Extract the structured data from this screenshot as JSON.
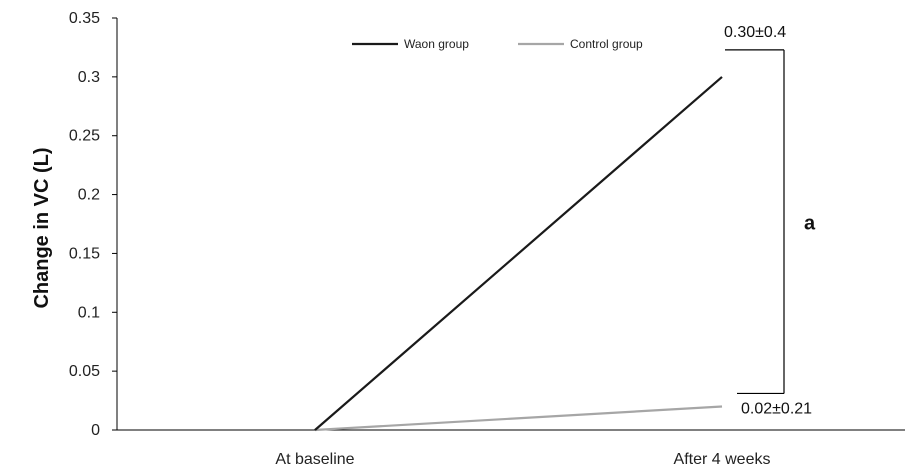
{
  "chart_data": {
    "type": "line",
    "title": "",
    "xlabel": "",
    "ylabel": "Change in VC (L)",
    "categories": [
      "At baseline",
      "After 4 weeks"
    ],
    "ylim": [
      0,
      0.35
    ],
    "yticks": [
      0,
      0.05,
      0.1,
      0.15,
      0.2,
      0.25,
      0.3,
      0.35
    ],
    "ytick_labels": [
      "0",
      "0.05",
      "0.1",
      "0.15",
      "0.2",
      "0.25",
      "0.3",
      "0.35"
    ],
    "grid": false,
    "legend_position": "top",
    "series": [
      {
        "name": "Waon group",
        "values": [
          0,
          0.3
        ],
        "color": "#1a1a1a"
      },
      {
        "name": "Control group",
        "values": [
          0,
          0.02
        ],
        "color": "#a6a6a6"
      }
    ],
    "annotations": {
      "waon_end": "0.30±0.4",
      "control_end": "0.02±0.21",
      "significance": "a"
    }
  }
}
